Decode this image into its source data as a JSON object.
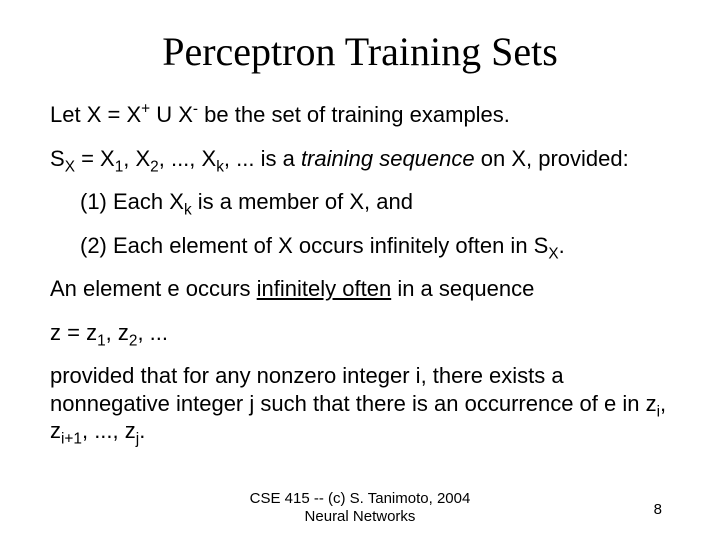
{
  "title": "Perceptron Training Sets",
  "line1_pre": "Let X = X",
  "line1_sup1": "+",
  "line1_mid": " U X",
  "line1_sup2": "-",
  "line1_post": " be the set of training examples.",
  "line2_a": "S",
  "line2_a_sub": "X",
  "line2_b": " = X",
  "line2_b_sub": "1",
  "line2_c": ", X",
  "line2_c_sub": "2",
  "line2_d": ", ..., X",
  "line2_d_sub": "k",
  "line2_e": ", ... is a ",
  "line2_ital": "training sequence",
  "line2_f": " on X, provided:",
  "cond1_a": "(1) Each X",
  "cond1_sub": "k",
  "cond1_b": " is a member of X, and",
  "cond2_a": "(2) Each element of X occurs infinitely often in S",
  "cond2_sub": "X",
  "cond2_b": ".",
  "line3_a": "An element e occurs ",
  "line3_ital": "infinitely often",
  "line3_b": " in a sequence",
  "line4_a": "z = z",
  "line4_sub1": "1",
  "line4_b": ", z",
  "line4_sub2": "2",
  "line4_c": ", ...",
  "line5_a": "provided that for any nonzero integer i, there exists a nonnegative integer j such that there is an occurrence of e in z",
  "line5_sub1": "i",
  "line5_b": ", z",
  "line5_sub2": "i+1",
  "line5_c": ", ..., z",
  "line5_sub3": "j",
  "line5_d": ".",
  "footer_line1": "CSE 415 -- (c) S. Tanimoto, 2004",
  "footer_line2": "Neural Networks",
  "page_num": "8"
}
